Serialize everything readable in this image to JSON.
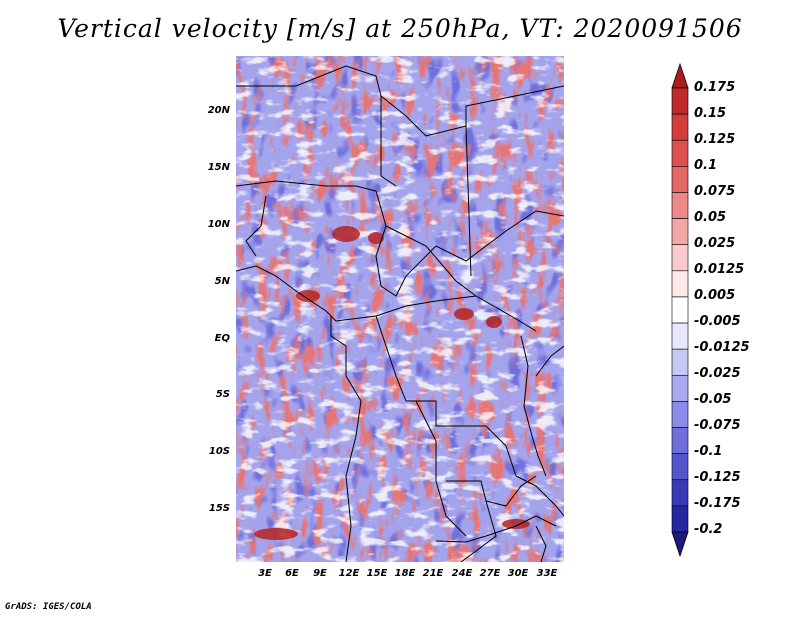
{
  "title": "Vertical velocity [m/s] at 250hPa, VT: 2020091506",
  "map": {
    "field": "Vertical velocity",
    "units": "m/s",
    "level": "250hPa",
    "valid_time": "2020091506",
    "lat_labels": [
      "20N",
      "15N",
      "10N",
      "5N",
      "EQ",
      "5S",
      "10S",
      "15S"
    ],
    "lon_labels": [
      "3E",
      "6E",
      "9E",
      "12E",
      "15E",
      "18E",
      "21E",
      "24E",
      "27E",
      "30E",
      "33E"
    ]
  },
  "colorbar": {
    "labels": [
      "0.175",
      "0.15",
      "0.125",
      "0.1",
      "0.075",
      "0.05",
      "0.025",
      "0.0125",
      "0.005",
      "-0.005",
      "-0.0125",
      "-0.025",
      "-0.05",
      "-0.075",
      "-0.1",
      "-0.125",
      "-0.175",
      "-0.2"
    ],
    "colors": [
      "#aa1e1e",
      "#c02a2a",
      "#d23c3c",
      "#dc5050",
      "#e46868",
      "#ec8888",
      "#f2a8a8",
      "#f8cccc",
      "#fce8e8",
      "#ffffff",
      "#e8e8fc",
      "#c8c8f4",
      "#a8a8ee",
      "#8c8ce8",
      "#7070dc",
      "#5454cc",
      "#3a3ab8",
      "#2626a0",
      "#1a1a80"
    ]
  },
  "footer": "GrADS: IGES/COLA"
}
